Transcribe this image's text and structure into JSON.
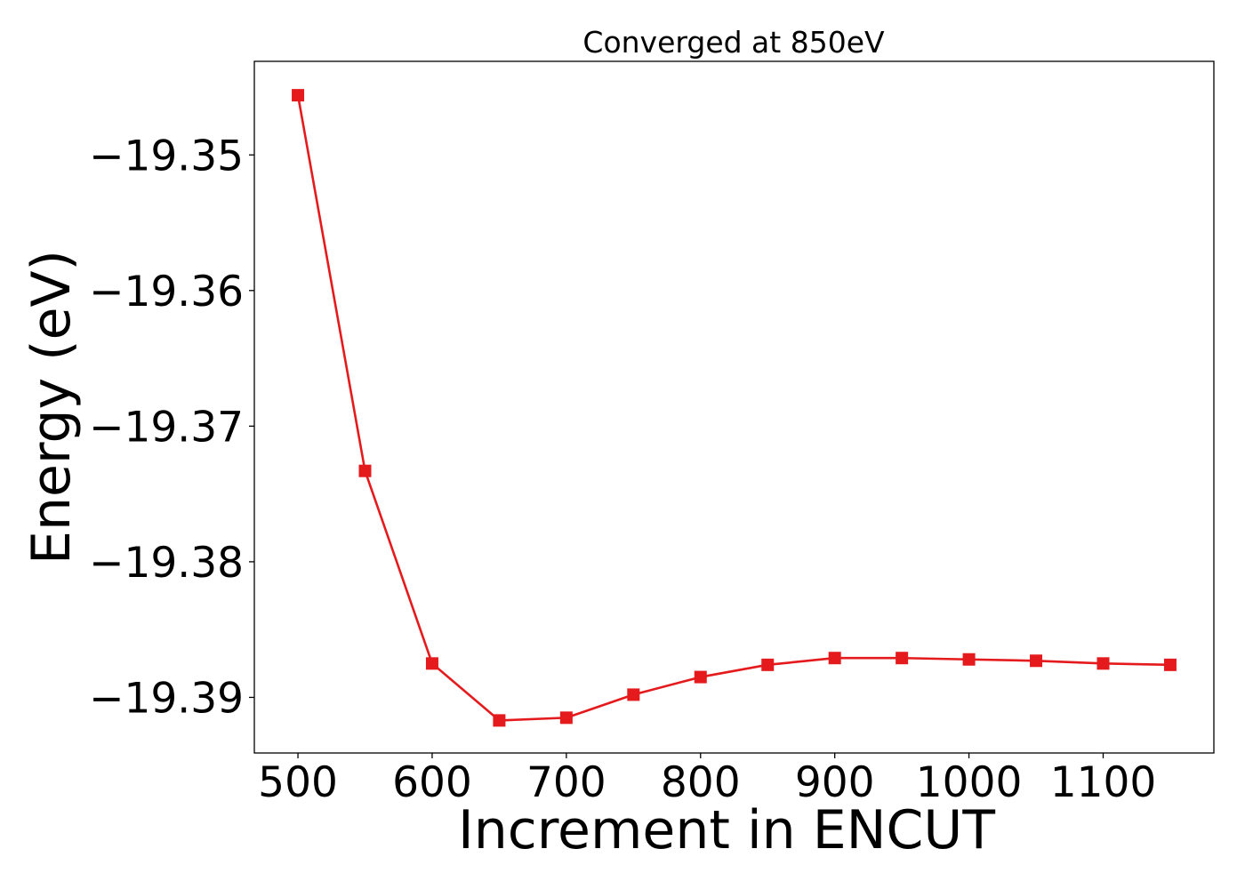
{
  "chart_data": {
    "type": "line",
    "title": "Converged at 850eV",
    "xlabel": "Increment in ENCUT",
    "ylabel": "Energy (eV)",
    "xlim": [
      467.5,
      1182.5
    ],
    "ylim": [
      -19.3941,
      -19.3431
    ],
    "x_ticks": [
      500,
      600,
      700,
      800,
      900,
      1000,
      1100
    ],
    "x_tick_labels": [
      "500",
      "600",
      "700",
      "800",
      "900",
      "1000",
      "1100"
    ],
    "y_ticks": [
      -19.35,
      -19.36,
      -19.37,
      -19.38,
      -19.39
    ],
    "y_tick_labels": [
      "−19.35",
      "−19.36",
      "−19.37",
      "−19.38",
      "−19.39"
    ],
    "grid": false,
    "series": [
      {
        "color": "#e41a1c",
        "marker": "square",
        "x": [
          500,
          550,
          600,
          650,
          700,
          750,
          800,
          850,
          900,
          950,
          1000,
          1050,
          1100,
          1150
        ],
        "y": [
          -19.3456,
          -19.3733,
          -19.3875,
          -19.3917,
          -19.3915,
          -19.3898,
          -19.3885,
          -19.3876,
          -19.3871,
          -19.3871,
          -19.3872,
          -19.3873,
          -19.3875,
          -19.3876
        ]
      }
    ]
  }
}
